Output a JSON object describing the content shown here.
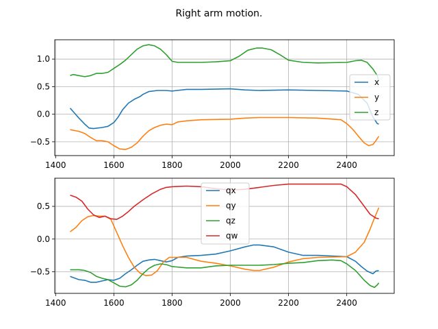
{
  "figure": {
    "title": "Right arm motion."
  },
  "chart_data": [
    {
      "type": "line",
      "panel": "position",
      "xlim": [
        1397,
        2563
      ],
      "ylim": [
        -0.75,
        1.35
      ],
      "xticks": [
        1400,
        1600,
        1800,
        2000,
        2200,
        2400
      ],
      "yticks": [
        -0.5,
        0.0,
        0.5,
        1.0
      ],
      "xtick_labels": [
        "1400",
        "1600",
        "1800",
        "2000",
        "2200",
        "2400"
      ],
      "ytick_labels": [
        "−0.5",
        "0.0",
        "0.5",
        "1.0"
      ],
      "grid": true,
      "legend": "center-right",
      "series": [
        {
          "name": "x",
          "color": "#1f77b4",
          "points": [
            [
              1450,
              0.11
            ],
            [
              1465,
              0.02
            ],
            [
              1480,
              -0.07
            ],
            [
              1500,
              -0.18
            ],
            [
              1515,
              -0.25
            ],
            [
              1530,
              -0.26
            ],
            [
              1560,
              -0.24
            ],
            [
              1580,
              -0.22
            ],
            [
              1600,
              -0.15
            ],
            [
              1615,
              -0.05
            ],
            [
              1630,
              0.08
            ],
            [
              1650,
              0.2
            ],
            [
              1670,
              0.27
            ],
            [
              1690,
              0.32
            ],
            [
              1700,
              0.36
            ],
            [
              1720,
              0.41
            ],
            [
              1750,
              0.43
            ],
            [
              1780,
              0.43
            ],
            [
              1800,
              0.42
            ],
            [
              1850,
              0.45
            ],
            [
              1900,
              0.45
            ],
            [
              2000,
              0.46
            ],
            [
              2050,
              0.44
            ],
            [
              2100,
              0.43
            ],
            [
              2200,
              0.44
            ],
            [
              2300,
              0.43
            ],
            [
              2400,
              0.42
            ],
            [
              2440,
              0.36
            ],
            [
              2470,
              0.2
            ],
            [
              2490,
              -0.05
            ],
            [
              2505,
              -0.17
            ],
            [
              2510,
              -0.18
            ]
          ]
        },
        {
          "name": "y",
          "color": "#ff7f0e",
          "points": [
            [
              1450,
              -0.28
            ],
            [
              1480,
              -0.31
            ],
            [
              1500,
              -0.35
            ],
            [
              1520,
              -0.42
            ],
            [
              1540,
              -0.48
            ],
            [
              1560,
              -0.48
            ],
            [
              1580,
              -0.5
            ],
            [
              1600,
              -0.57
            ],
            [
              1620,
              -0.63
            ],
            [
              1640,
              -0.64
            ],
            [
              1660,
              -0.6
            ],
            [
              1680,
              -0.52
            ],
            [
              1700,
              -0.4
            ],
            [
              1720,
              -0.3
            ],
            [
              1740,
              -0.24
            ],
            [
              1760,
              -0.2
            ],
            [
              1780,
              -0.18
            ],
            [
              1800,
              -0.19
            ],
            [
              1820,
              -0.14
            ],
            [
              1850,
              -0.12
            ],
            [
              1900,
              -0.1
            ],
            [
              2000,
              -0.09
            ],
            [
              2050,
              -0.07
            ],
            [
              2100,
              -0.06
            ],
            [
              2200,
              -0.06
            ],
            [
              2300,
              -0.07
            ],
            [
              2380,
              -0.1
            ],
            [
              2400,
              -0.17
            ],
            [
              2420,
              -0.27
            ],
            [
              2440,
              -0.4
            ],
            [
              2460,
              -0.52
            ],
            [
              2475,
              -0.57
            ],
            [
              2490,
              -0.55
            ],
            [
              2500,
              -0.48
            ],
            [
              2510,
              -0.4
            ]
          ]
        },
        {
          "name": "z",
          "color": "#2ca02c",
          "points": [
            [
              1450,
              0.7
            ],
            [
              1460,
              0.72
            ],
            [
              1480,
              0.7
            ],
            [
              1500,
              0.68
            ],
            [
              1520,
              0.7
            ],
            [
              1540,
              0.74
            ],
            [
              1560,
              0.74
            ],
            [
              1580,
              0.76
            ],
            [
              1600,
              0.83
            ],
            [
              1620,
              0.9
            ],
            [
              1640,
              0.98
            ],
            [
              1660,
              1.08
            ],
            [
              1680,
              1.18
            ],
            [
              1700,
              1.24
            ],
            [
              1720,
              1.26
            ],
            [
              1740,
              1.24
            ],
            [
              1760,
              1.18
            ],
            [
              1780,
              1.08
            ],
            [
              1800,
              0.96
            ],
            [
              1820,
              0.94
            ],
            [
              1900,
              0.94
            ],
            [
              1950,
              0.95
            ],
            [
              2000,
              0.97
            ],
            [
              2030,
              1.05
            ],
            [
              2060,
              1.16
            ],
            [
              2090,
              1.2
            ],
            [
              2110,
              1.2
            ],
            [
              2140,
              1.17
            ],
            [
              2170,
              1.08
            ],
            [
              2200,
              0.98
            ],
            [
              2250,
              0.94
            ],
            [
              2300,
              0.93
            ],
            [
              2400,
              0.94
            ],
            [
              2430,
              0.97
            ],
            [
              2450,
              0.98
            ],
            [
              2470,
              0.94
            ],
            [
              2490,
              0.82
            ],
            [
              2505,
              0.7
            ],
            [
              2510,
              0.6
            ]
          ]
        }
      ]
    },
    {
      "type": "line",
      "panel": "orientation",
      "xlim": [
        1397,
        2563
      ],
      "ylim": [
        -0.83,
        0.93
      ],
      "xticks": [
        1400,
        1600,
        1800,
        2000,
        2200,
        2400
      ],
      "yticks": [
        -0.5,
        0.0,
        0.5
      ],
      "xtick_labels": [
        "1400",
        "1600",
        "1800",
        "2000",
        "2200",
        "2400"
      ],
      "ytick_labels": [
        "−0.5",
        "0.0",
        "0.5"
      ],
      "grid": true,
      "legend": "upper-center",
      "series": [
        {
          "name": "qx",
          "color": "#1f77b4",
          "points": [
            [
              1450,
              -0.57
            ],
            [
              1480,
              -0.62
            ],
            [
              1500,
              -0.63
            ],
            [
              1520,
              -0.66
            ],
            [
              1540,
              -0.66
            ],
            [
              1560,
              -0.64
            ],
            [
              1580,
              -0.62
            ],
            [
              1600,
              -0.63
            ],
            [
              1620,
              -0.6
            ],
            [
              1640,
              -0.53
            ],
            [
              1660,
              -0.47
            ],
            [
              1680,
              -0.4
            ],
            [
              1700,
              -0.34
            ],
            [
              1720,
              -0.32
            ],
            [
              1740,
              -0.31
            ],
            [
              1760,
              -0.33
            ],
            [
              1780,
              -0.35
            ],
            [
              1800,
              -0.33
            ],
            [
              1820,
              -0.28
            ],
            [
              1850,
              -0.26
            ],
            [
              1900,
              -0.25
            ],
            [
              1950,
              -0.23
            ],
            [
              2000,
              -0.18
            ],
            [
              2050,
              -0.12
            ],
            [
              2080,
              -0.09
            ],
            [
              2100,
              -0.09
            ],
            [
              2150,
              -0.12
            ],
            [
              2200,
              -0.2
            ],
            [
              2250,
              -0.25
            ],
            [
              2300,
              -0.25
            ],
            [
              2400,
              -0.27
            ],
            [
              2430,
              -0.34
            ],
            [
              2450,
              -0.42
            ],
            [
              2470,
              -0.49
            ],
            [
              2490,
              -0.53
            ],
            [
              2500,
              -0.49
            ],
            [
              2510,
              -0.48
            ]
          ]
        },
        {
          "name": "qy",
          "color": "#ff7f0e",
          "points": [
            [
              1450,
              0.11
            ],
            [
              1470,
              0.18
            ],
            [
              1490,
              0.28
            ],
            [
              1510,
              0.34
            ],
            [
              1530,
              0.36
            ],
            [
              1550,
              0.35
            ],
            [
              1570,
              0.35
            ],
            [
              1590,
              0.3
            ],
            [
              1610,
              0.1
            ],
            [
              1630,
              -0.1
            ],
            [
              1650,
              -0.28
            ],
            [
              1670,
              -0.43
            ],
            [
              1690,
              -0.52
            ],
            [
              1710,
              -0.56
            ],
            [
              1730,
              -0.55
            ],
            [
              1750,
              -0.48
            ],
            [
              1770,
              -0.35
            ],
            [
              1790,
              -0.28
            ],
            [
              1850,
              -0.28
            ],
            [
              1900,
              -0.34
            ],
            [
              1950,
              -0.37
            ],
            [
              2000,
              -0.41
            ],
            [
              2050,
              -0.46
            ],
            [
              2080,
              -0.48
            ],
            [
              2100,
              -0.48
            ],
            [
              2150,
              -0.43
            ],
            [
              2200,
              -0.35
            ],
            [
              2250,
              -0.3
            ],
            [
              2300,
              -0.28
            ],
            [
              2400,
              -0.27
            ],
            [
              2430,
              -0.2
            ],
            [
              2460,
              -0.05
            ],
            [
              2480,
              0.15
            ],
            [
              2495,
              0.32
            ],
            [
              2510,
              0.48
            ]
          ]
        },
        {
          "name": "qz",
          "color": "#2ca02c",
          "points": [
            [
              1450,
              -0.47
            ],
            [
              1480,
              -0.47
            ],
            [
              1500,
              -0.48
            ],
            [
              1520,
              -0.51
            ],
            [
              1540,
              -0.57
            ],
            [
              1560,
              -0.6
            ],
            [
              1580,
              -0.62
            ],
            [
              1600,
              -0.67
            ],
            [
              1620,
              -0.72
            ],
            [
              1640,
              -0.73
            ],
            [
              1660,
              -0.7
            ],
            [
              1680,
              -0.63
            ],
            [
              1700,
              -0.53
            ],
            [
              1720,
              -0.45
            ],
            [
              1740,
              -0.4
            ],
            [
              1760,
              -0.38
            ],
            [
              1780,
              -0.39
            ],
            [
              1800,
              -0.42
            ],
            [
              1850,
              -0.44
            ],
            [
              1900,
              -0.44
            ],
            [
              1950,
              -0.41
            ],
            [
              2000,
              -0.4
            ],
            [
              2100,
              -0.4
            ],
            [
              2150,
              -0.39
            ],
            [
              2200,
              -0.37
            ],
            [
              2250,
              -0.36
            ],
            [
              2300,
              -0.33
            ],
            [
              2350,
              -0.32
            ],
            [
              2380,
              -0.33
            ],
            [
              2400,
              -0.38
            ],
            [
              2430,
              -0.48
            ],
            [
              2460,
              -0.63
            ],
            [
              2480,
              -0.71
            ],
            [
              2495,
              -0.74
            ],
            [
              2505,
              -0.7
            ],
            [
              2510,
              -0.67
            ]
          ]
        },
        {
          "name": "qw",
          "color": "#d62728",
          "points": [
            [
              1450,
              0.67
            ],
            [
              1470,
              0.64
            ],
            [
              1490,
              0.58
            ],
            [
              1510,
              0.46
            ],
            [
              1530,
              0.37
            ],
            [
              1550,
              0.33
            ],
            [
              1570,
              0.35
            ],
            [
              1590,
              0.31
            ],
            [
              1610,
              0.3
            ],
            [
              1630,
              0.35
            ],
            [
              1650,
              0.42
            ],
            [
              1670,
              0.5
            ],
            [
              1700,
              0.6
            ],
            [
              1730,
              0.69
            ],
            [
              1760,
              0.76
            ],
            [
              1780,
              0.79
            ],
            [
              1800,
              0.8
            ],
            [
              1850,
              0.81
            ],
            [
              1900,
              0.8
            ],
            [
              1950,
              0.77
            ],
            [
              2000,
              0.75
            ],
            [
              2050,
              0.76
            ],
            [
              2100,
              0.79
            ],
            [
              2150,
              0.82
            ],
            [
              2200,
              0.84
            ],
            [
              2300,
              0.84
            ],
            [
              2380,
              0.84
            ],
            [
              2400,
              0.8
            ],
            [
              2430,
              0.68
            ],
            [
              2460,
              0.5
            ],
            [
              2480,
              0.38
            ],
            [
              2500,
              0.32
            ],
            [
              2510,
              0.31
            ]
          ]
        }
      ]
    }
  ]
}
